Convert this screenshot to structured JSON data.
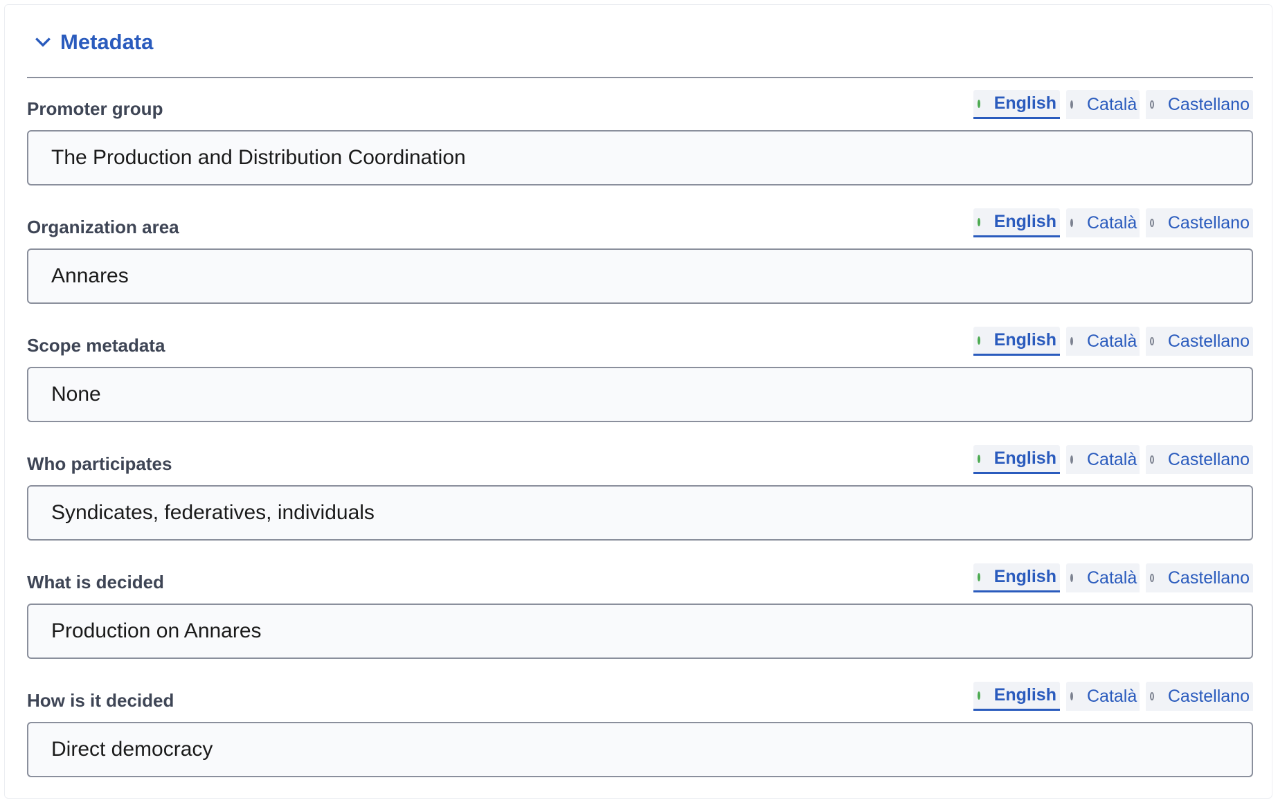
{
  "section": {
    "title": "Metadata",
    "icon": "chevron-down-icon"
  },
  "languages": [
    "English",
    "Català",
    "Castellano"
  ],
  "active_language": "English",
  "colors": {
    "accent": "#2a5bbd",
    "active_dot": "#4caa50",
    "label": "#3e4555"
  },
  "fields": [
    {
      "label": "Promoter group",
      "value": "The Production and Distribution Coordination"
    },
    {
      "label": "Organization area",
      "value": "Annares"
    },
    {
      "label": "Scope metadata",
      "value": "None"
    },
    {
      "label": "Who participates",
      "value": "Syndicates, federatives, individuals"
    },
    {
      "label": "What is decided",
      "value": "Production on Annares"
    },
    {
      "label": "How is it decided",
      "value": "Direct democracy"
    }
  ]
}
